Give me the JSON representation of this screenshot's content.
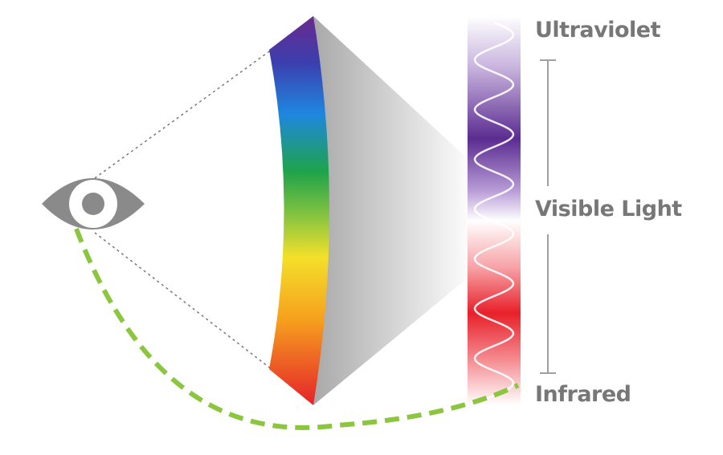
{
  "labels": {
    "ultraviolet": "Ultraviolet",
    "visible_light": "Visible Light",
    "infrared": "Infrared"
  },
  "icons": {
    "viewer": "eye-icon"
  },
  "colors": {
    "eye": "#8a8a8a",
    "dashed_arc": "#8cc63f",
    "ultraviolet_band": "#5b2c91",
    "infrared_band": "#e8202a",
    "label_text": "#777777",
    "bracket_line": "#a0a0a0"
  },
  "spectrum_bands": [
    "violet",
    "blue",
    "green",
    "yellow",
    "orange",
    "red"
  ]
}
